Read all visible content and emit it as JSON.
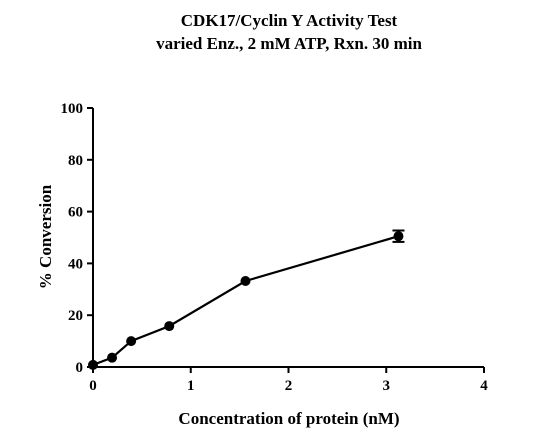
{
  "chart_data": {
    "type": "line",
    "title": "CDK17/Cyclin Y Activity Test",
    "subtitle": "varied Enz., 2 mM ATP, Rxn. 30 min",
    "xlabel": "Concentration of protein (nM)",
    "ylabel": "% Conversion",
    "xlim": [
      0,
      4
    ],
    "ylim": [
      0,
      100
    ],
    "x_ticks": [
      "0",
      "1",
      "2",
      "3",
      "4"
    ],
    "y_ticks": [
      "0",
      "20",
      "40",
      "60",
      "80",
      "100"
    ],
    "x_tick_values": [
      0,
      1,
      2,
      3,
      4
    ],
    "y_tick_values": [
      0,
      20,
      40,
      60,
      80,
      100
    ],
    "grid": false,
    "legend": "none",
    "series": [
      {
        "x": [
          0,
          0.195,
          0.39,
          0.78,
          1.56,
          3.125
        ],
        "y": [
          0.8,
          3.6,
          10.0,
          15.8,
          33.2,
          50.5
        ],
        "error": [
          0,
          0,
          0,
          0,
          0,
          2.2
        ],
        "color": "#000000",
        "marker": "circle"
      }
    ]
  }
}
